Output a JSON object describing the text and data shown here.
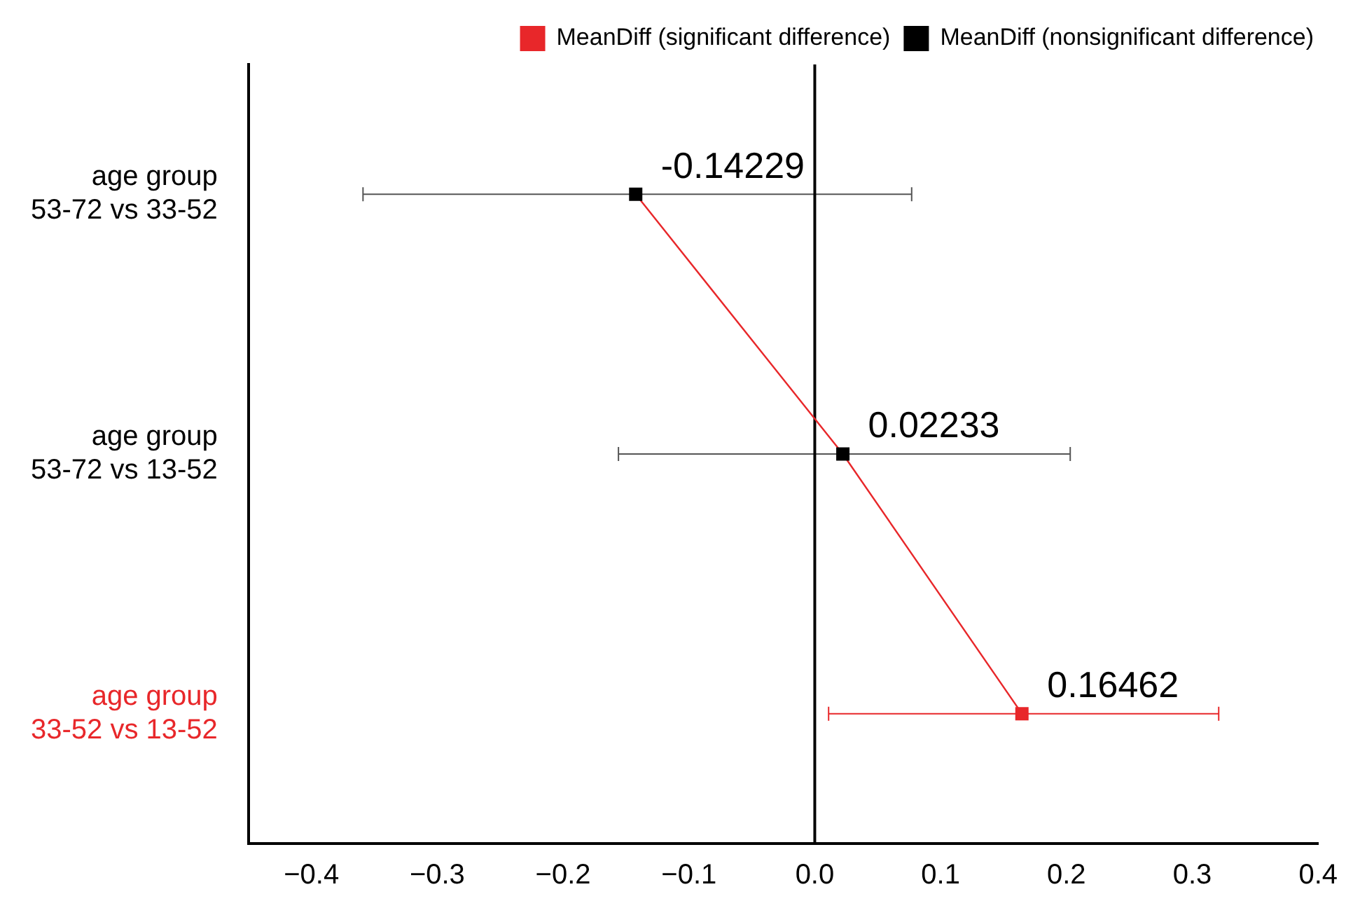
{
  "chart_data": {
    "type": "scatter",
    "orientation": "horizontal",
    "categories": [
      "age group\n53-72 vs 33-52",
      "age group\n53-72 vs 13-52",
      "age group\n33-52 vs 13-52"
    ],
    "series": [
      {
        "type": "line",
        "color": "#e8272a",
        "marker": "none",
        "values": [
          -0.14229,
          0.02233,
          0.16462
        ]
      },
      {
        "name": "MeanDiff (significant difference)",
        "color": "#e8272a",
        "values": [
          null,
          null,
          0.16462
        ],
        "value_labels": [
          null,
          null,
          "0.16462"
        ],
        "errors": [
          null,
          null,
          [
            0.011,
            0.321
          ]
        ]
      },
      {
        "name": "MeanDiff (nonsignificant difference)",
        "color": "#000000",
        "values": [
          -0.14229,
          0.02233,
          null
        ],
        "value_labels": [
          "-0.14229",
          "0.02233",
          null
        ],
        "errors": [
          [
            -0.359,
            0.077
          ],
          [
            -0.156,
            0.203
          ],
          null
        ]
      }
    ],
    "xlim": [
      -0.45,
      0.4
    ],
    "xticks": [
      {
        "value": -0.4,
        "label": "−0.4"
      },
      {
        "value": -0.3,
        "label": "−0.3"
      },
      {
        "value": -0.2,
        "label": "−0.2"
      },
      {
        "value": -0.1,
        "label": "−0.1"
      },
      {
        "value": 0,
        "label": "0.0"
      },
      {
        "value": 0.1,
        "label": "0.1"
      },
      {
        "value": 0.2,
        "label": "0.2"
      },
      {
        "value": 0.3,
        "label": "0.3"
      },
      {
        "value": 0.4,
        "label": "0.4"
      }
    ],
    "ref_lines": [
      {
        "axis": "x",
        "value": 0,
        "color": "#000000"
      }
    ],
    "marker": "square",
    "grid": false,
    "legend": "top right"
  }
}
